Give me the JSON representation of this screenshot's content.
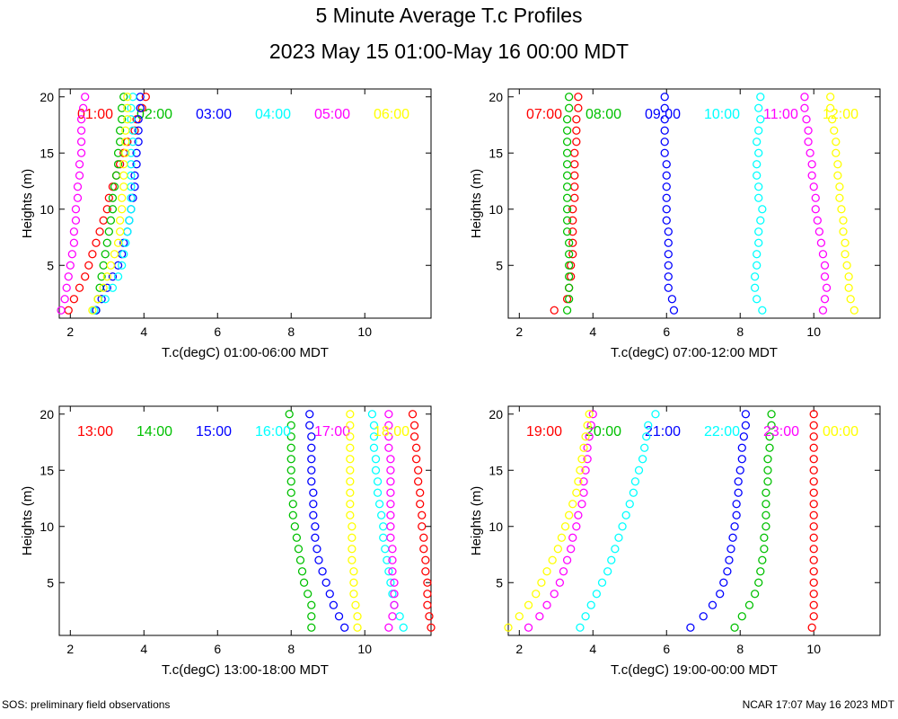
{
  "title": "5 Minute Average T.c Profiles",
  "subtitle": "2023 May 15 01:00-May 16 00:00 MDT",
  "footer_left": "SOS: preliminary field observations",
  "footer_right": "NCAR 17:07 May 16 2023 MDT",
  "colors": [
    "#ff0000",
    "#00c000",
    "#0000ff",
    "#00ffff",
    "#ff00ff",
    "#ffff00"
  ],
  "chart_data": [
    {
      "type": "scatter",
      "xlabel": "T.c(degC) 01:00-06:00 MDT",
      "ylabel": "Heights (m)",
      "xlim": [
        1.7,
        11.8
      ],
      "ylim": [
        0.3,
        20.7
      ],
      "xticks": [
        2,
        4,
        6,
        8,
        10
      ],
      "yticks": [
        5,
        10,
        15,
        20
      ],
      "legend_placement": "top",
      "heights": [
        1,
        2,
        3,
        4,
        5,
        6,
        7,
        8,
        9,
        10,
        11,
        12,
        13,
        14,
        15,
        16,
        17,
        18,
        19,
        20
      ],
      "series": [
        {
          "name": "01:00",
          "values": [
            1.95,
            2.1,
            2.25,
            2.4,
            2.5,
            2.6,
            2.7,
            2.8,
            2.9,
            3.0,
            3.05,
            3.15,
            3.25,
            3.35,
            3.45,
            3.55,
            3.75,
            3.8,
            3.95,
            4.05
          ]
        },
        {
          "name": "02:00",
          "values": [
            2.7,
            2.75,
            2.8,
            2.85,
            2.9,
            2.95,
            3.0,
            3.05,
            3.1,
            3.15,
            3.15,
            3.2,
            3.25,
            3.3,
            3.3,
            3.35,
            3.35,
            3.4,
            3.4,
            3.45
          ]
        },
        {
          "name": "03:00",
          "values": [
            2.7,
            2.85,
            3.0,
            3.15,
            3.3,
            3.4,
            3.45,
            3.55,
            3.6,
            3.65,
            3.7,
            3.75,
            3.75,
            3.8,
            3.8,
            3.85,
            3.85,
            3.85,
            3.9,
            3.9
          ]
        },
        {
          "name": "04:00",
          "values": [
            2.65,
            2.95,
            3.15,
            3.3,
            3.4,
            3.45,
            3.5,
            3.55,
            3.6,
            3.65,
            3.65,
            3.65,
            3.65,
            3.65,
            3.65,
            3.7,
            3.7,
            3.65,
            3.65,
            3.7
          ]
        },
        {
          "name": "05:00",
          "values": [
            1.75,
            1.85,
            1.9,
            1.95,
            2.0,
            2.05,
            2.1,
            2.1,
            2.15,
            2.15,
            2.2,
            2.2,
            2.25,
            2.25,
            2.3,
            2.3,
            2.3,
            2.3,
            2.35,
            2.4
          ]
        },
        {
          "name": "06:00",
          "values": [
            2.6,
            2.75,
            2.9,
            3.0,
            3.1,
            3.2,
            3.3,
            3.35,
            3.35,
            3.4,
            3.4,
            3.45,
            3.45,
            3.45,
            3.5,
            3.5,
            3.5,
            3.55,
            3.55,
            3.55
          ]
        }
      ]
    },
    {
      "type": "scatter",
      "xlabel": "T.c(degC) 07:00-12:00 MDT",
      "ylabel": "Heights (m)",
      "xlim": [
        1.7,
        11.8
      ],
      "ylim": [
        0.3,
        20.7
      ],
      "xticks": [
        2,
        4,
        6,
        8,
        10
      ],
      "yticks": [
        5,
        10,
        15,
        20
      ],
      "legend_placement": "top",
      "heights": [
        1,
        2,
        3,
        4,
        5,
        6,
        7,
        8,
        9,
        10,
        11,
        12,
        13,
        14,
        15,
        16,
        17,
        18,
        19,
        20
      ],
      "series": [
        {
          "name": "07:00",
          "values": [
            2.95,
            3.3,
            3.35,
            3.4,
            3.4,
            3.45,
            3.45,
            3.45,
            3.45,
            3.45,
            3.5,
            3.5,
            3.5,
            3.5,
            3.5,
            3.55,
            3.55,
            3.55,
            3.6,
            3.6
          ]
        },
        {
          "name": "08:00",
          "values": [
            3.3,
            3.35,
            3.35,
            3.35,
            3.35,
            3.35,
            3.35,
            3.3,
            3.3,
            3.3,
            3.3,
            3.3,
            3.3,
            3.3,
            3.3,
            3.3,
            3.3,
            3.3,
            3.35,
            3.35
          ]
        },
        {
          "name": "09:00",
          "values": [
            6.2,
            6.15,
            6.05,
            6.05,
            6.05,
            6.05,
            6.05,
            6.05,
            6.0,
            6.0,
            6.0,
            6.0,
            6.0,
            6.0,
            5.95,
            5.95,
            5.95,
            5.95,
            5.95,
            5.95
          ]
        },
        {
          "name": "10:00",
          "values": [
            8.6,
            8.45,
            8.4,
            8.4,
            8.45,
            8.45,
            8.5,
            8.5,
            8.55,
            8.6,
            8.5,
            8.5,
            8.45,
            8.45,
            8.5,
            8.45,
            8.5,
            8.55,
            8.5,
            8.55
          ]
        },
        {
          "name": "11:00",
          "values": [
            10.25,
            10.3,
            10.35,
            10.3,
            10.3,
            10.25,
            10.2,
            10.15,
            10.1,
            10.05,
            10.05,
            10.0,
            9.95,
            9.95,
            9.9,
            9.85,
            9.85,
            9.8,
            9.75,
            9.75
          ]
        },
        {
          "name": "12:00",
          "values": [
            11.1,
            11.0,
            10.95,
            10.95,
            10.9,
            10.85,
            10.85,
            10.8,
            10.8,
            10.75,
            10.7,
            10.7,
            10.65,
            10.65,
            10.6,
            10.6,
            10.55,
            10.5,
            10.45,
            10.45
          ]
        }
      ]
    },
    {
      "type": "scatter",
      "xlabel": "T.c(degC) 13:00-18:00 MDT",
      "ylabel": "Heights (m)",
      "xlim": [
        1.7,
        11.8
      ],
      "ylim": [
        0.3,
        20.7
      ],
      "xticks": [
        2,
        4,
        6,
        8,
        10
      ],
      "yticks": [
        5,
        10,
        15,
        20
      ],
      "legend_placement": "top",
      "heights": [
        1,
        2,
        3,
        4,
        5,
        6,
        7,
        8,
        9,
        10,
        11,
        12,
        13,
        14,
        15,
        16,
        17,
        18,
        19,
        20
      ],
      "series": [
        {
          "name": "13:00",
          "values": [
            11.8,
            11.75,
            11.7,
            11.7,
            11.7,
            11.65,
            11.65,
            11.6,
            11.6,
            11.55,
            11.55,
            11.5,
            11.5,
            11.45,
            11.45,
            11.4,
            11.4,
            11.35,
            11.35,
            11.3
          ]
        },
        {
          "name": "14:00",
          "values": [
            8.55,
            8.55,
            8.55,
            8.45,
            8.35,
            8.3,
            8.25,
            8.2,
            8.15,
            8.1,
            8.05,
            8.05,
            8.0,
            8.0,
            8.0,
            8.0,
            8.0,
            8.0,
            8.0,
            7.95
          ]
        },
        {
          "name": "15:00",
          "values": [
            9.45,
            9.3,
            9.15,
            9.05,
            8.95,
            8.85,
            8.75,
            8.7,
            8.65,
            8.65,
            8.6,
            8.6,
            8.6,
            8.55,
            8.55,
            8.55,
            8.55,
            8.55,
            8.5,
            8.5
          ]
        },
        {
          "name": "16:00",
          "values": [
            11.05,
            10.95,
            10.8,
            10.75,
            10.7,
            10.65,
            10.6,
            10.55,
            10.5,
            10.5,
            10.45,
            10.4,
            10.35,
            10.35,
            10.3,
            10.3,
            10.25,
            10.25,
            10.25,
            10.2
          ]
        },
        {
          "name": "17:00",
          "values": [
            10.65,
            10.75,
            10.8,
            10.8,
            10.8,
            10.75,
            10.75,
            10.75,
            10.7,
            10.7,
            10.7,
            10.7,
            10.7,
            10.7,
            10.7,
            10.7,
            10.65,
            10.65,
            10.65,
            10.65
          ]
        },
        {
          "name": "18:00",
          "values": [
            9.8,
            9.8,
            9.75,
            9.7,
            9.7,
            9.7,
            9.65,
            9.65,
            9.65,
            9.65,
            9.6,
            9.6,
            9.6,
            9.6,
            9.6,
            9.6,
            9.6,
            9.6,
            9.6,
            9.6
          ]
        }
      ]
    },
    {
      "type": "scatter",
      "xlabel": "T.c(degC) 19:00-00:00 MDT",
      "ylabel": "Heights (m)",
      "xlim": [
        1.7,
        11.8
      ],
      "ylim": [
        0.3,
        20.7
      ],
      "xticks": [
        2,
        4,
        6,
        8,
        10
      ],
      "yticks": [
        5,
        10,
        15,
        20
      ],
      "legend_placement": "top",
      "heights": [
        1,
        2,
        3,
        4,
        5,
        6,
        7,
        8,
        9,
        10,
        11,
        12,
        13,
        14,
        15,
        16,
        17,
        18,
        19,
        20
      ],
      "series": [
        {
          "name": "19:00",
          "values": [
            9.95,
            10.0,
            10.0,
            10.0,
            10.0,
            10.0,
            10.0,
            10.0,
            10.0,
            10.0,
            10.0,
            10.0,
            10.0,
            10.0,
            10.0,
            10.0,
            10.0,
            10.0,
            10.0,
            10.0
          ]
        },
        {
          "name": "20:00",
          "values": [
            7.85,
            8.05,
            8.25,
            8.4,
            8.5,
            8.55,
            8.6,
            8.65,
            8.65,
            8.7,
            8.7,
            8.7,
            8.7,
            8.75,
            8.75,
            8.75,
            8.8,
            8.8,
            8.85,
            8.85
          ]
        },
        {
          "name": "21:00",
          "values": [
            6.65,
            7.0,
            7.25,
            7.45,
            7.55,
            7.65,
            7.7,
            7.75,
            7.8,
            7.85,
            7.9,
            7.9,
            7.95,
            7.95,
            8.0,
            8.05,
            8.05,
            8.1,
            8.15,
            8.15
          ]
        },
        {
          "name": "22:00",
          "values": [
            3.65,
            3.8,
            3.95,
            4.1,
            4.25,
            4.4,
            4.5,
            4.6,
            4.7,
            4.8,
            4.9,
            5.0,
            5.1,
            5.15,
            5.25,
            5.35,
            5.4,
            5.45,
            5.5,
            5.7
          ]
        },
        {
          "name": "23:00",
          "values": [
            2.25,
            2.55,
            2.75,
            2.95,
            3.1,
            3.2,
            3.3,
            3.4,
            3.45,
            3.55,
            3.6,
            3.7,
            3.75,
            3.75,
            3.8,
            3.85,
            3.85,
            3.9,
            3.95,
            4.0
          ]
        },
        {
          "name": "00:00",
          "values": [
            1.7,
            2.0,
            2.25,
            2.45,
            2.6,
            2.75,
            2.9,
            3.05,
            3.15,
            3.25,
            3.35,
            3.45,
            3.55,
            3.6,
            3.65,
            3.7,
            3.75,
            3.8,
            3.85,
            3.9
          ]
        }
      ]
    }
  ]
}
